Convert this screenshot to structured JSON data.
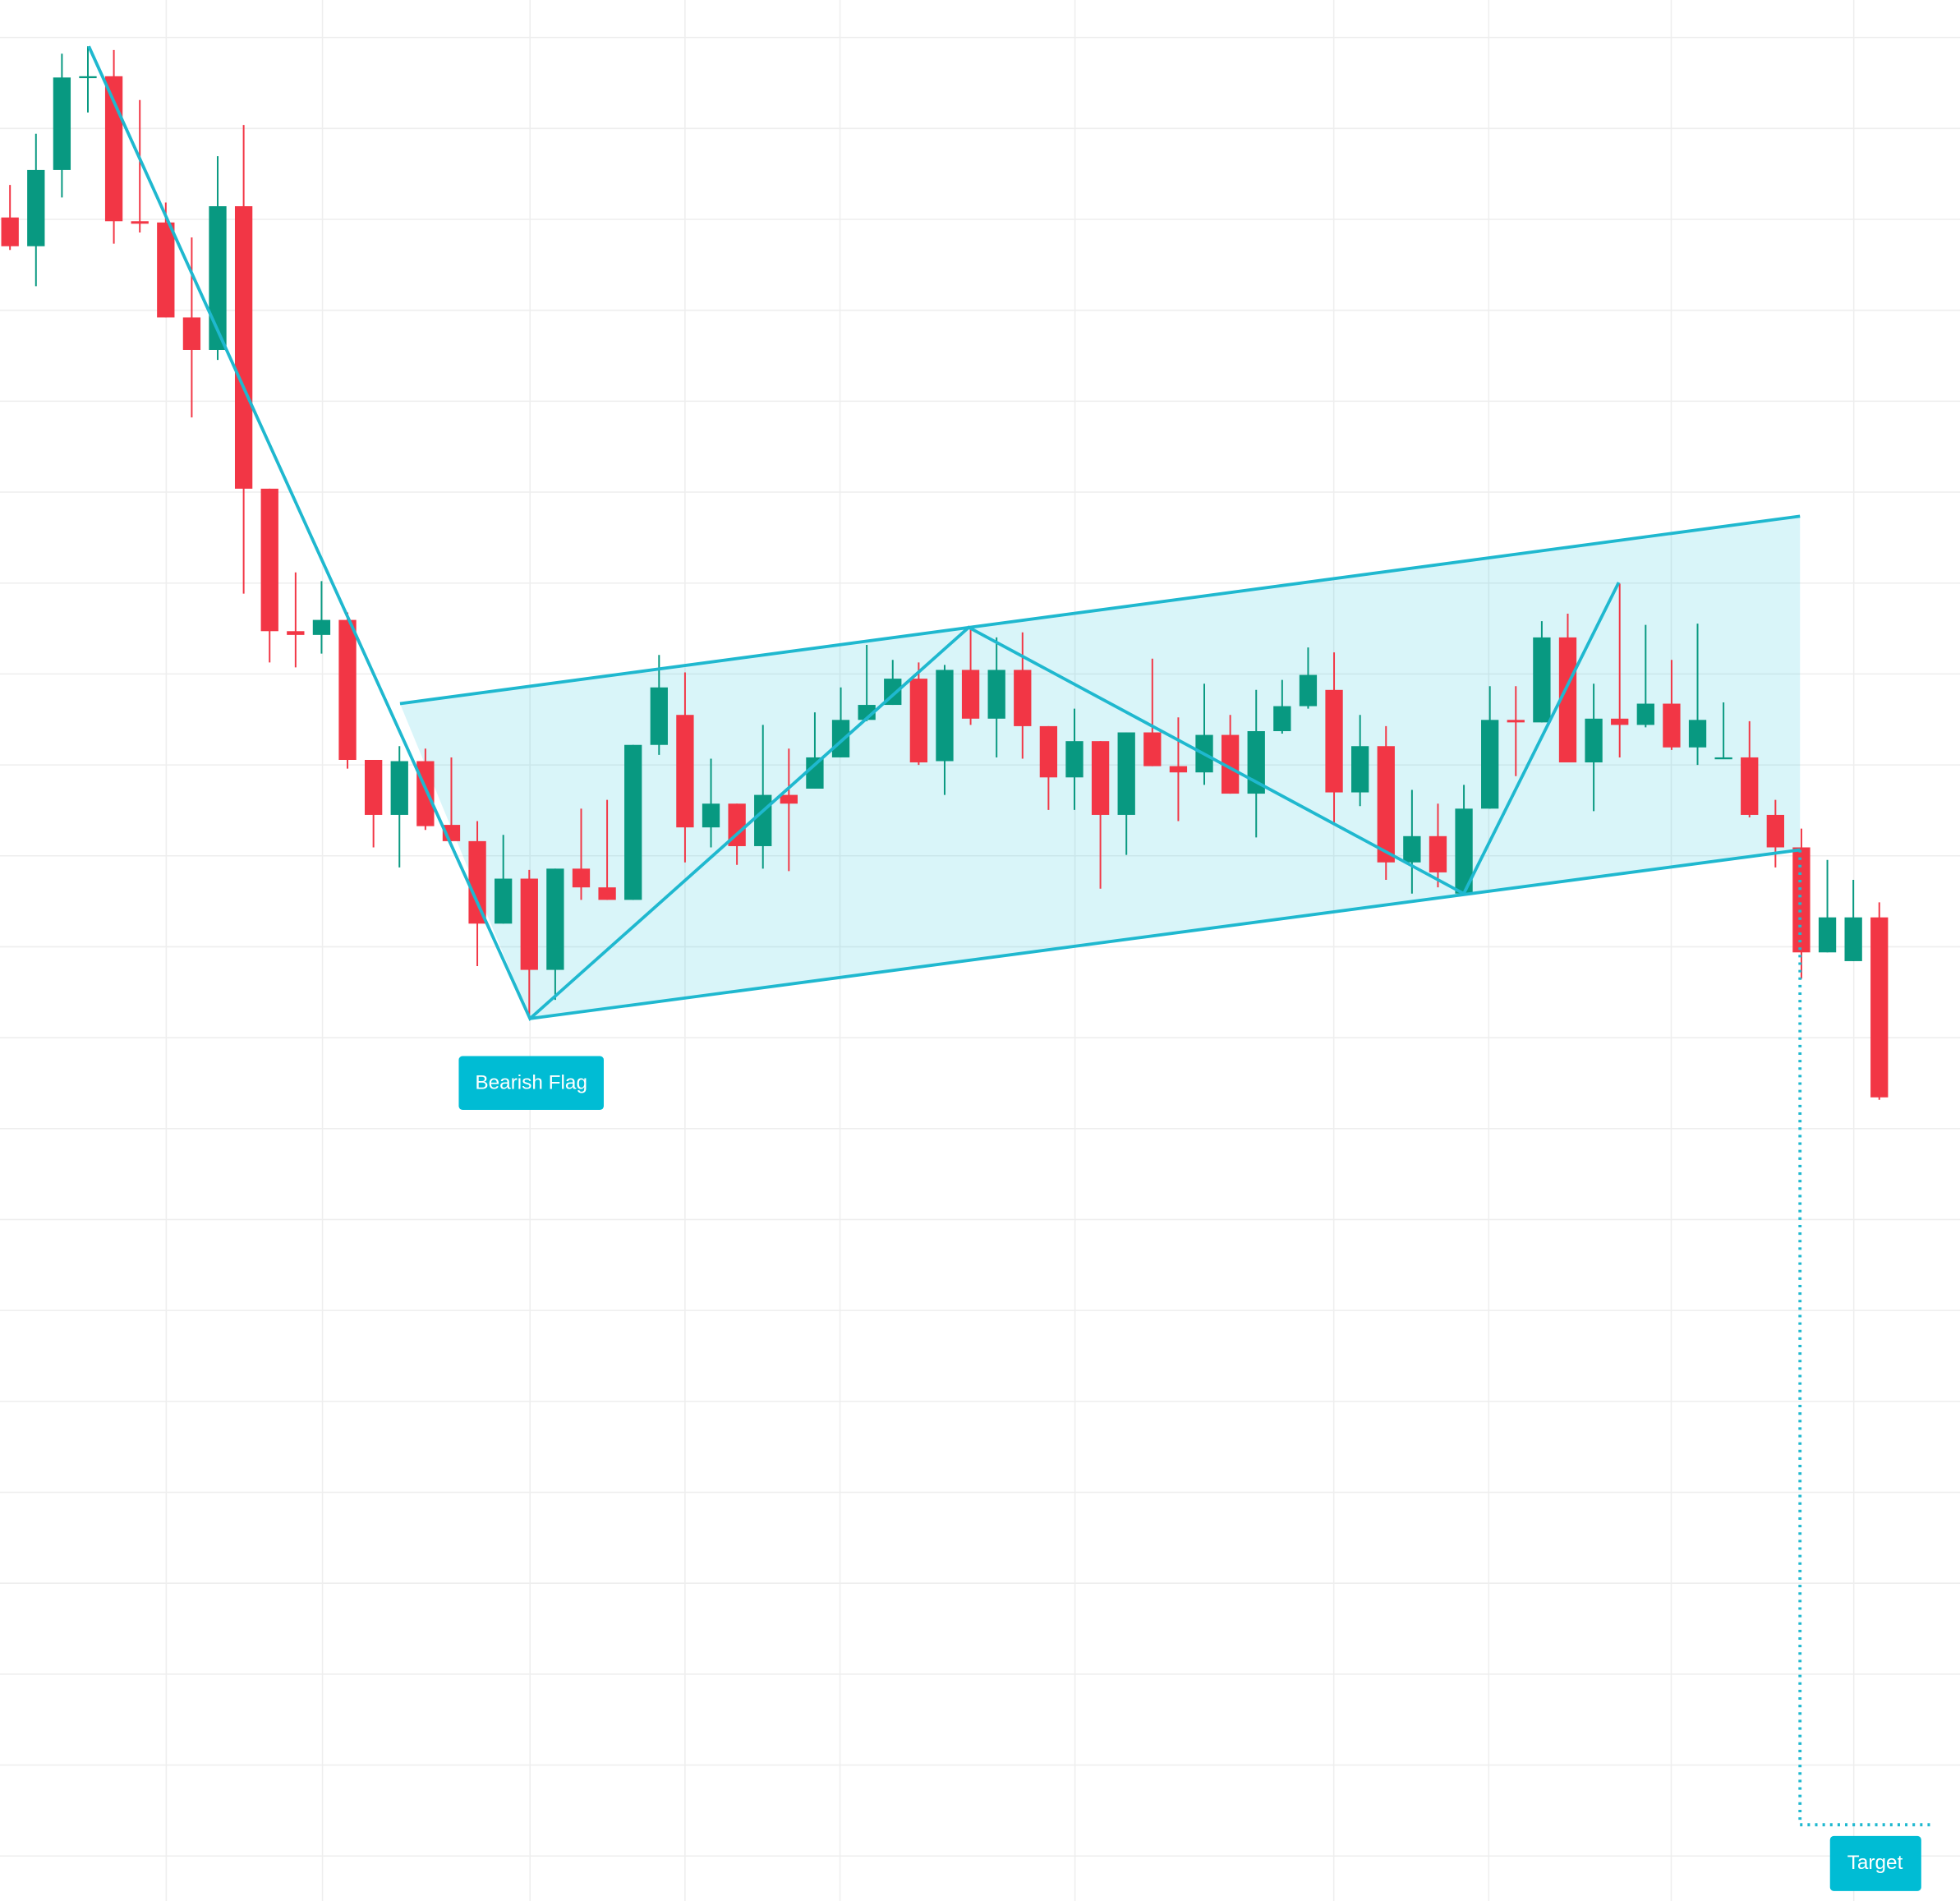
{
  "chart_data": {
    "type": "candlestick",
    "annotations": [
      "Bearish Flag",
      "Target"
    ],
    "open": [
      1347,
      1324,
      1385,
      1459,
      1460,
      1344,
      1343,
      1267,
      1241,
      1356,
      1130,
      1016,
      1013,
      1025,
      913,
      869,
      912,
      861,
      848,
      782,
      818,
      745,
      826,
      811,
      801,
      925,
      949,
      859,
      878,
      844,
      885,
      890,
      915,
      945,
      957,
      978,
      912,
      985,
      946,
      985,
      940,
      899,
      928,
      869,
      935,
      908,
      903,
      933,
      886,
      936,
      956,
      969,
      887,
      924,
      831,
      852,
      806,
      874,
      945,
      943,
      1011,
      911,
      946,
      941,
      958,
      923,
      914,
      915,
      869,
      843,
      759,
      752,
      787
    ],
    "high": [
      1373,
      1414,
      1478,
      1484,
      1481,
      1441,
      1359,
      1331,
      1396,
      1421,
      1130,
      1063,
      1056,
      1031,
      913,
      924,
      922,
      915,
      864,
      853,
      825,
      826,
      874,
      881,
      925,
      997,
      983,
      914,
      878,
      941,
      922,
      951,
      971,
      1005,
      993,
      991,
      989,
      1018,
      1011,
      1015,
      940,
      954,
      928,
      935,
      994,
      947,
      974,
      949,
      969,
      977,
      1003,
      999,
      949,
      940,
      889,
      878,
      893,
      972,
      972,
      1024,
      1030,
      974,
      1054,
      1021,
      993,
      1022,
      959,
      944,
      881,
      858,
      833,
      817,
      799
    ],
    "low": [
      1321,
      1292,
      1363,
      1431,
      1326,
      1335,
      1267,
      1187,
      1233,
      1046,
      991,
      987,
      998,
      906,
      843,
      827,
      857,
      848,
      748,
      782,
      709,
      721,
      801,
      801,
      801,
      917,
      831,
      843,
      829,
      826,
      824,
      890,
      915,
      944,
      957,
      909,
      885,
      941,
      915,
      914,
      873,
      873,
      810,
      837,
      908,
      864,
      893,
      886,
      851,
      934,
      954,
      863,
      876,
      817,
      806,
      811,
      806,
      874,
      900,
      943,
      911,
      872,
      915,
      939,
      921,
      909,
      914,
      867,
      827,
      738,
      759,
      752,
      641
    ],
    "close": [
      1324,
      1385,
      1459,
      1460,
      1344,
      1342,
      1267,
      1241,
      1356,
      1130,
      1016,
      1013,
      1025,
      913,
      869,
      912,
      860,
      848,
      782,
      818,
      745,
      826,
      811,
      801,
      925,
      971,
      859,
      878,
      844,
      885,
      878,
      915,
      945,
      957,
      978,
      911,
      985,
      946,
      985,
      940,
      899,
      928,
      869,
      935,
      908,
      903,
      933,
      886,
      936,
      956,
      981,
      887,
      924,
      831,
      852,
      823,
      874,
      945,
      943,
      1011,
      911,
      946,
      941,
      958,
      923,
      945,
      915,
      869,
      843,
      759,
      787,
      787,
      643
    ],
    "up_color": "#089981",
    "down_color": "#f23645",
    "ylim": [
      0,
      1521
    ],
    "grid": true
  }
}
